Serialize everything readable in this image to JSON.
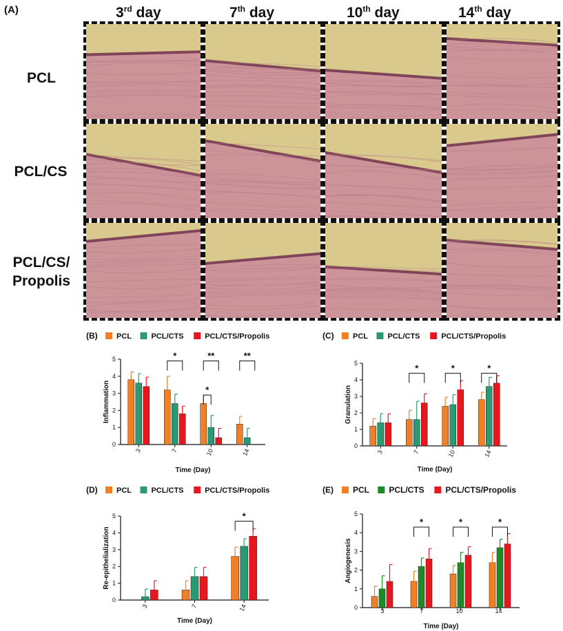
{
  "panel_a": {
    "letter": "(A)",
    "days": [
      {
        "num": "3",
        "sup": "rd",
        "word": " day"
      },
      {
        "num": "7",
        "sup": "th",
        "word": " day"
      },
      {
        "num": "10",
        "sup": "th",
        "word": " day"
      },
      {
        "num": "14",
        "sup": "th",
        "word": " day"
      }
    ],
    "rows": [
      {
        "line1": "PCL",
        "line2": ""
      },
      {
        "line1": "PCL/CS",
        "line2": ""
      },
      {
        "line1": "PCL/CS/",
        "line2": "Propolis"
      }
    ]
  },
  "colors": {
    "PCL": "#f07f26",
    "PCL/CTS": "#2a9a73",
    "PCL/CTS/Propolis": "#e8171e",
    "PCL/CTS_E": "#1f8a28",
    "tissue_bg": "#d9c98c",
    "tissue_pink": "#c98a9b",
    "tissue_dark": "#6b2a4a"
  },
  "chart_data": [
    {
      "id": "B",
      "letter": "(B)",
      "type": "bar",
      "legend": [
        "PCL",
        "PCL/CTS",
        "PCL/CTS/Propolis"
      ],
      "categories": [
        "3",
        "7",
        "10",
        "14"
      ],
      "series": [
        {
          "name": "PCL",
          "values": [
            3.8,
            3.2,
            2.4,
            1.2
          ],
          "errors": [
            0.45,
            0.8,
            0.5,
            0.45
          ]
        },
        {
          "name": "PCL/CTS",
          "values": [
            3.6,
            2.4,
            1.0,
            0.4
          ],
          "errors": [
            0.55,
            0.55,
            0.7,
            0.55
          ]
        },
        {
          "name": "PCL/CTS/Propolis",
          "values": [
            3.4,
            1.8,
            0.4,
            0.0
          ],
          "errors": [
            0.55,
            0.45,
            0.55,
            0.0
          ]
        }
      ],
      "ylim": [
        0,
        5
      ],
      "yticks": [
        "0",
        "1",
        "2",
        "3",
        "4",
        "5"
      ],
      "ylabel": "Inflammation",
      "xlabel": "Time (Day)",
      "significance": [
        {
          "cat": 1,
          "from": 0,
          "to": 2,
          "y": 4.9,
          "label": "*"
        },
        {
          "cat": 2,
          "from": 0,
          "to": 1,
          "y": 2.9,
          "label": "*"
        },
        {
          "cat": 2,
          "from": 0,
          "to": 2,
          "y": 4.9,
          "label": "**"
        },
        {
          "cat": 3,
          "from": 0,
          "to": 2,
          "y": 4.9,
          "label": "**"
        }
      ]
    },
    {
      "id": "C",
      "letter": "(C)",
      "type": "bar",
      "legend": [
        "PCL",
        "PCL/CTS",
        "PCL/CTS/Propolis"
      ],
      "categories": [
        "3",
        "7",
        "10",
        "14"
      ],
      "series": [
        {
          "name": "PCL",
          "values": [
            1.2,
            1.6,
            2.4,
            2.8
          ],
          "errors": [
            0.45,
            0.55,
            0.55,
            0.45
          ]
        },
        {
          "name": "PCL/CTS",
          "values": [
            1.4,
            1.6,
            2.5,
            3.6
          ],
          "errors": [
            0.55,
            1.1,
            0.6,
            0.55
          ]
        },
        {
          "name": "PCL/CTS/Propolis",
          "values": [
            1.4,
            2.6,
            3.4,
            3.8
          ],
          "errors": [
            0.55,
            0.55,
            0.55,
            0.45
          ]
        }
      ],
      "ylim": [
        0,
        5
      ],
      "yticks": [
        "0",
        "1",
        "2",
        "3",
        "4",
        "5"
      ],
      "ylabel": "Granulation",
      "xlabel": "Time (Day)",
      "significance": [
        {
          "cat": 1,
          "from": 0,
          "to": 2,
          "y": 4.4,
          "label": "*"
        },
        {
          "cat": 2,
          "from": 0,
          "to": 2,
          "y": 4.4,
          "label": "*"
        },
        {
          "cat": 3,
          "from": 0,
          "to": 2,
          "y": 4.4,
          "label": "*"
        }
      ]
    },
    {
      "id": "D",
      "letter": "(D)",
      "type": "bar",
      "legend": [
        "PCL",
        "PCL/CTS",
        "PCL/CTS/Propolis"
      ],
      "categories": [
        "3",
        "7",
        "14"
      ],
      "series": [
        {
          "name": "PCL",
          "values": [
            0.0,
            0.6,
            2.6
          ],
          "errors": [
            0.0,
            0.55,
            0.55
          ]
        },
        {
          "name": "PCL/CTS",
          "values": [
            0.2,
            1.4,
            3.2
          ],
          "errors": [
            0.45,
            0.55,
            0.45
          ]
        },
        {
          "name": "PCL/CTS/Propolis",
          "values": [
            0.6,
            1.4,
            3.8
          ],
          "errors": [
            0.55,
            0.55,
            0.45
          ]
        }
      ],
      "ylim": [
        0,
        5
      ],
      "yticks": [
        "0",
        "1",
        "2",
        "3",
        "4",
        "5"
      ],
      "ylabel": "Re-epithelialization",
      "xlabel": "Time (Day)",
      "significance": [
        {
          "cat": 2,
          "from": 0,
          "to": 2,
          "y": 4.7,
          "label": "*"
        }
      ]
    },
    {
      "id": "E",
      "letter": "(E)",
      "type": "bar",
      "legend": [
        "PCL",
        "PCL/CTS",
        "PCL/CTS/Propolis"
      ],
      "categories": [
        "3",
        "7",
        "10",
        "14"
      ],
      "series": [
        {
          "name": "PCL",
          "values": [
            0.6,
            1.4,
            1.8,
            2.4
          ],
          "errors": [
            0.55,
            0.55,
            0.45,
            0.55
          ]
        },
        {
          "name": "PCL/CTS",
          "values": [
            1.0,
            2.2,
            2.4,
            3.2
          ],
          "errors": [
            0.7,
            0.45,
            0.55,
            0.45
          ]
        },
        {
          "name": "PCL/CTS/Propolis",
          "values": [
            1.4,
            2.6,
            2.8,
            3.4
          ],
          "errors": [
            0.9,
            0.55,
            0.45,
            0.55
          ]
        }
      ],
      "ylim": [
        0,
        5
      ],
      "yticks": [
        "0",
        "1",
        "2",
        "3",
        "4",
        "5"
      ],
      "ylabel": "Angiogenesis",
      "xlabel": "Time (Day)",
      "significance": [
        {
          "cat": 1,
          "from": 0,
          "to": 2,
          "y": 4.3,
          "label": "*"
        },
        {
          "cat": 2,
          "from": 0,
          "to": 2,
          "y": 4.3,
          "label": "*"
        },
        {
          "cat": 3,
          "from": 0,
          "to": 2,
          "y": 4.3,
          "label": "*"
        }
      ]
    }
  ]
}
